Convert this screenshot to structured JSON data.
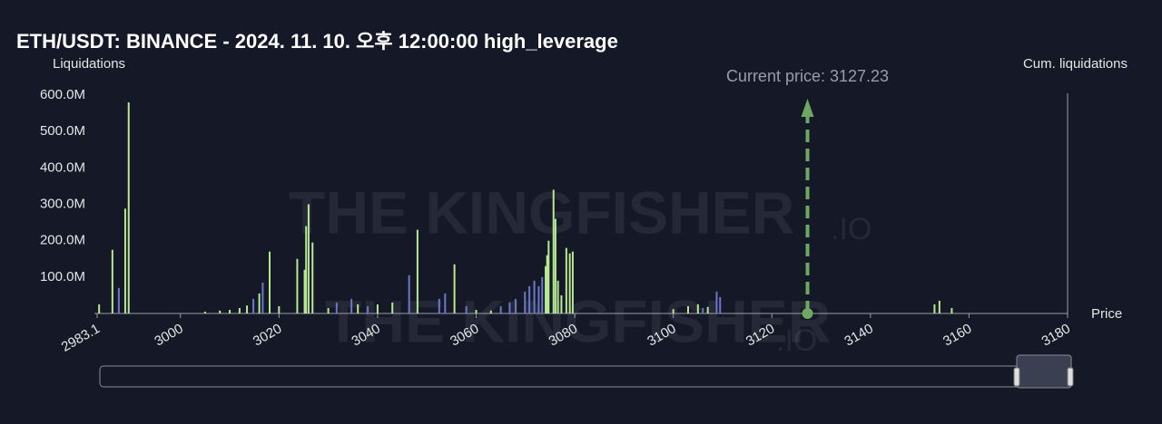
{
  "chart_data": {
    "type": "bar",
    "title": "ETH/USDT: BINANCE - 2024. 11. 10. 오후 12:00:00 high_leverage",
    "y_label": "Liquidations",
    "y2_label": "Cum. liquidations",
    "x_label": "Price",
    "annotation": "Current price: 3127.23",
    "current_price": 3127.23,
    "watermark": "THE KINGFISHER",
    "watermark_suffix": ".IO",
    "xlim": [
      2983.1,
      3180
    ],
    "xticks": [
      2983.1,
      3000,
      3020,
      3040,
      3060,
      3080,
      3100,
      3120,
      3140,
      3160,
      3180
    ],
    "ylim": [
      0,
      600
    ],
    "yticks": [
      {
        "value": 100,
        "label": "100.0M"
      },
      {
        "value": 200,
        "label": "200.0M"
      },
      {
        "value": 300,
        "label": "300.0M"
      },
      {
        "value": 400,
        "label": "400.0M"
      },
      {
        "value": 500,
        "label": "500.0M"
      },
      {
        "value": 600,
        "label": "600.0M"
      }
    ],
    "series": [
      {
        "color": "#b7e892",
        "x": [
          2983.5,
          2986.2,
          2988.8,
          2989.5,
          3005,
          3008,
          3010,
          3012,
          3013.5,
          3016,
          3018.1,
          3020,
          3023.7,
          3025.2,
          3025.5,
          3026.0,
          3026.8,
          3030,
          3036,
          3040,
          3043,
          3048.1,
          3055.6,
          3060,
          3063,
          3074.1,
          3074.4,
          3074.7,
          3075.7,
          3076.1,
          3076.6,
          3077.3,
          3078.3,
          3079.0,
          3079.6,
          3100,
          3103,
          3105,
          3107,
          3153.0,
          3154.0,
          3156.5
        ],
        "values": [
          25,
          175,
          288,
          580,
          5,
          8,
          10,
          15,
          22,
          55,
          170,
          20,
          150,
          120,
          240,
          300,
          195,
          15,
          25,
          25,
          30,
          230,
          135,
          10,
          8,
          130,
          160,
          200,
          340,
          260,
          90,
          50,
          180,
          165,
          170,
          12,
          20,
          25,
          18,
          25,
          35,
          15
        ]
      },
      {
        "color": "#6b78c8",
        "x": [
          2987.5,
          3014.8,
          3016.7,
          3031.7,
          3034.7,
          3038,
          3046.4,
          3052.5,
          3053.7,
          3058,
          3065,
          3066.8,
          3068.0,
          3069.9,
          3070.8,
          3071.8,
          3072.7,
          3073.4,
          3106,
          3108.8,
          3109.5
        ],
        "values": [
          70,
          40,
          85,
          30,
          40,
          20,
          105,
          40,
          55,
          20,
          20,
          30,
          40,
          60,
          75,
          90,
          75,
          100,
          15,
          60,
          45
        ]
      }
    ]
  }
}
